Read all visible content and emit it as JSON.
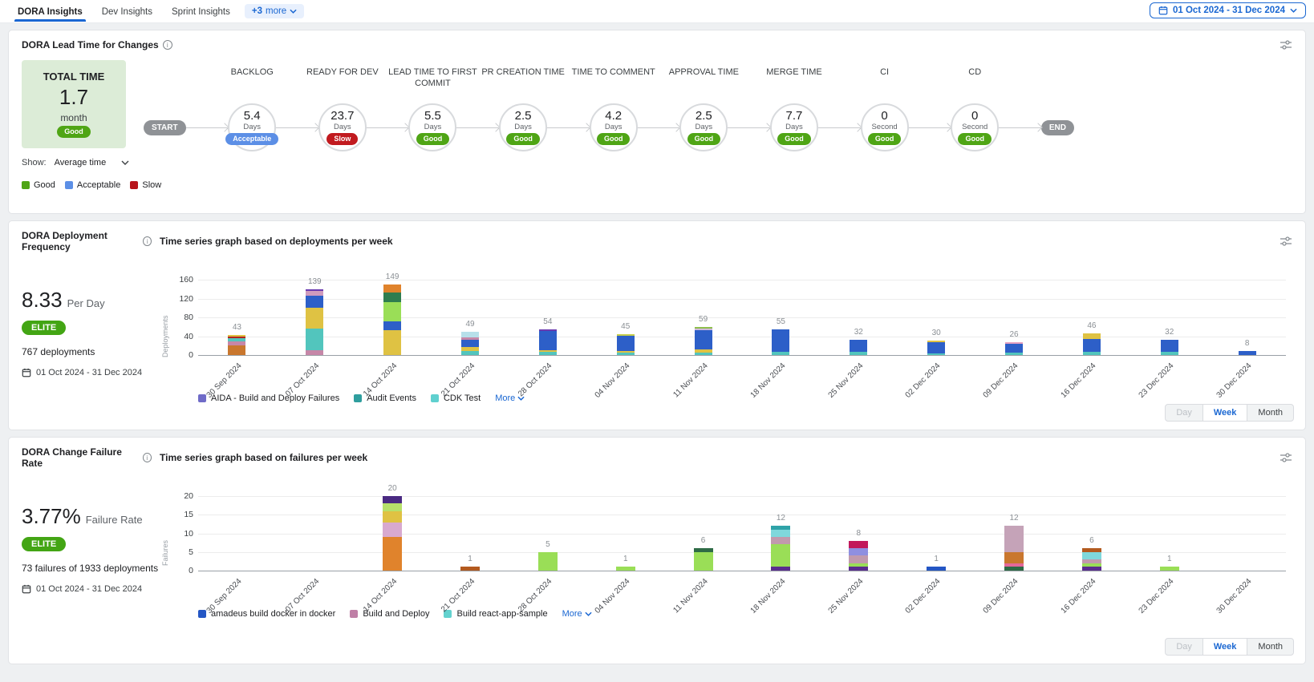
{
  "tabs": [
    {
      "label": "DORA Insights",
      "active": true
    },
    {
      "label": "Dev Insights",
      "active": false
    },
    {
      "label": "Sprint Insights",
      "active": false
    }
  ],
  "more_chip": {
    "plus": "+3",
    "label": "more"
  },
  "date_picker": {
    "value": "01 Oct 2024 - 31 Dec 2024"
  },
  "colors": {
    "accent_blue": "#1a67d2",
    "status": {
      "Good": "#4fa515",
      "Acceptable": "#5c8fe6",
      "Slow": "#c11a1f"
    },
    "elite": "#43a514"
  },
  "lead_time": {
    "title": "DORA Lead Time for Changes",
    "total": {
      "label": "TOTAL TIME",
      "value": "1.7",
      "unit": "month",
      "status": "Good"
    },
    "show_label": "Show:",
    "show_value": "Average time",
    "legend": [
      {
        "label": "Good",
        "color": "#4fa515"
      },
      {
        "label": "Acceptable",
        "color": "#5c8fe6"
      },
      {
        "label": "Slow",
        "color": "#b7131b"
      }
    ],
    "start_label": "START",
    "end_label": "END",
    "stages": [
      {
        "name": "BACKLOG",
        "value": "5.4",
        "unit": "Days",
        "status": "Acceptable"
      },
      {
        "name": "READY FOR DEV",
        "value": "23.7",
        "unit": "Days",
        "status": "Slow"
      },
      {
        "name": "LEAD TIME TO FIRST COMMIT",
        "value": "5.5",
        "unit": "Days",
        "status": "Good"
      },
      {
        "name": "PR CREATION TIME",
        "value": "2.5",
        "unit": "Days",
        "status": "Good"
      },
      {
        "name": "TIME TO COMMENT",
        "value": "4.2",
        "unit": "Days",
        "status": "Good"
      },
      {
        "name": "APPROVAL TIME",
        "value": "2.5",
        "unit": "Days",
        "status": "Good"
      },
      {
        "name": "MERGE TIME",
        "value": "7.7",
        "unit": "Days",
        "status": "Good"
      },
      {
        "name": "CI",
        "value": "0",
        "unit": "Second",
        "status": "Good"
      },
      {
        "name": "CD",
        "value": "0",
        "unit": "Second",
        "status": "Good"
      }
    ]
  },
  "deployment": {
    "title": "DORA Deployment Frequency",
    "chart_title": "Time series graph based on deployments per week",
    "rate": "8.33",
    "rate_unit": "Per Day",
    "badge": "ELITE",
    "total_label": "767 deployments",
    "date_range": "01 Oct 2024 - 31 Dec 2024",
    "legend": [
      {
        "label": "AIDA - Build and Deploy Failures",
        "color": "#6f6bc8"
      },
      {
        "label": "Audit Events",
        "color": "#2f9e9e"
      },
      {
        "label": "CDK Test",
        "color": "#5fd0cf"
      }
    ],
    "more_label": "More",
    "toggle": [
      "Day",
      "Week",
      "Month"
    ],
    "toggle_selected": "Week",
    "toggle_disabled": "Day"
  },
  "failure": {
    "title": "DORA Change Failure Rate",
    "chart_title": "Time series graph based on failures per week",
    "rate": "3.77%",
    "rate_unit": "Failure Rate",
    "badge": "ELITE",
    "total_label": "73 failures of 1933 deployments",
    "date_range": "01 Oct 2024 - 31 Dec 2024",
    "legend": [
      {
        "label": "amadeus build docker in docker",
        "color": "#2456c4"
      },
      {
        "label": "Build and Deploy",
        "color": "#bf7fa6"
      },
      {
        "label": "Build react-app-sample",
        "color": "#63d2cf"
      }
    ],
    "more_label": "More",
    "toggle": [
      "Day",
      "Week",
      "Month"
    ],
    "toggle_selected": "Week",
    "toggle_disabled": "Day"
  },
  "chart_data": [
    {
      "type": "bar",
      "stacked": true,
      "title": "Time series graph based on deployments per week",
      "ylabel": "Deployments",
      "ylim": [
        0,
        160
      ],
      "yticks": [
        0,
        40,
        80,
        120,
        160
      ],
      "grid": true,
      "legend_position": "bottom",
      "categories": [
        "30 Sep 2024",
        "07 Oct 2024",
        "14 Oct 2024",
        "21 Oct 2024",
        "28 Oct 2024",
        "04 Nov 2024",
        "11 Nov 2024",
        "18 Nov 2024",
        "25 Nov 2024",
        "02 Dec 2024",
        "09 Dec 2024",
        "16 Dec 2024",
        "23 Dec 2024",
        "30 Dec 2024"
      ],
      "totals": [
        43,
        139,
        149,
        49,
        54,
        45,
        59,
        55,
        32,
        30,
        26,
        46,
        32,
        8
      ],
      "bars": [
        [
          {
            "c": "#c9772e",
            "v": 20
          },
          {
            "c": "#c687a8",
            "v": 9
          },
          {
            "c": "#52c5bd",
            "v": 6
          },
          {
            "c": "#b3261e",
            "v": 4
          },
          {
            "c": "#dfc243",
            "v": 4
          }
        ],
        [
          {
            "c": "#c687a8",
            "v": 10
          },
          {
            "c": "#52c5bd",
            "v": 47
          },
          {
            "c": "#dfc243",
            "v": 43
          },
          {
            "c": "#2d5fc8",
            "v": 26
          },
          {
            "c": "#cf9bbd",
            "v": 10
          },
          {
            "c": "#6a3ab0",
            "v": 3
          }
        ],
        [
          {
            "c": "#dfc243",
            "v": 52
          },
          {
            "c": "#2d5fc8",
            "v": 19
          },
          {
            "c": "#9ade57",
            "v": 41
          },
          {
            "c": "#2e7d4f",
            "v": 20
          },
          {
            "c": "#e0832c",
            "v": 17
          }
        ],
        [
          {
            "c": "#52c5bd",
            "v": 8
          },
          {
            "c": "#dfc243",
            "v": 9
          },
          {
            "c": "#2d5fc8",
            "v": 16
          },
          {
            "c": "#c687a8",
            "v": 5
          },
          {
            "c": "#b7e0ea",
            "v": 11
          }
        ],
        [
          {
            "c": "#52c5bd",
            "v": 6
          },
          {
            "c": "#dfc243",
            "v": 5
          },
          {
            "c": "#2d5fc8",
            "v": 40
          },
          {
            "c": "#6a3ab0",
            "v": 3
          }
        ],
        [
          {
            "c": "#52c5bd",
            "v": 5
          },
          {
            "c": "#dfc243",
            "v": 4
          },
          {
            "c": "#2d5fc8",
            "v": 32
          },
          {
            "c": "#c6cf4a",
            "v": 4
          }
        ],
        [
          {
            "c": "#52c5bd",
            "v": 5
          },
          {
            "c": "#dfc243",
            "v": 7
          },
          {
            "c": "#2d5fc8",
            "v": 40
          },
          {
            "c": "#cdb6dd",
            "v": 4
          },
          {
            "c": "#8fbf4d",
            "v": 3
          }
        ],
        [
          {
            "c": "#52c5bd",
            "v": 7
          },
          {
            "c": "#2d5fc8",
            "v": 48
          }
        ],
        [
          {
            "c": "#52c5bd",
            "v": 7
          },
          {
            "c": "#2d5fc8",
            "v": 25
          }
        ],
        [
          {
            "c": "#52c5bd",
            "v": 4
          },
          {
            "c": "#2d5fc8",
            "v": 23
          },
          {
            "c": "#dfc243",
            "v": 3
          }
        ],
        [
          {
            "c": "#52c5bd",
            "v": 5
          },
          {
            "c": "#2d5fc8",
            "v": 19
          },
          {
            "c": "#e4a0c0",
            "v": 2
          }
        ],
        [
          {
            "c": "#52c5bd",
            "v": 6
          },
          {
            "c": "#2d5fc8",
            "v": 28
          },
          {
            "c": "#dfc243",
            "v": 12
          }
        ],
        [
          {
            "c": "#52c5bd",
            "v": 6
          },
          {
            "c": "#2d5fc8",
            "v": 26
          }
        ],
        [
          {
            "c": "#2d5fc8",
            "v": 8
          }
        ]
      ]
    },
    {
      "type": "bar",
      "stacked": true,
      "title": "Time series graph based on failures per week",
      "ylabel": "Failures",
      "ylim": [
        0,
        20
      ],
      "yticks": [
        0,
        5,
        10,
        15,
        20
      ],
      "grid": true,
      "legend_position": "bottom",
      "categories": [
        "30 Sep 2024",
        "07 Oct 2024",
        "14 Oct 2024",
        "21 Oct 2024",
        "28 Oct 2024",
        "04 Nov 2024",
        "11 Nov 2024",
        "18 Nov 2024",
        "25 Nov 2024",
        "02 Dec 2024",
        "09 Dec 2024",
        "16 Dec 2024",
        "23 Dec 2024",
        "30 Dec 2024"
      ],
      "totals": [
        0,
        0,
        20,
        1,
        5,
        1,
        6,
        12,
        8,
        1,
        12,
        6,
        1,
        0
      ],
      "bars": [
        [],
        [],
        [
          {
            "c": "#e0832c",
            "v": 9
          },
          {
            "c": "#d8a9cf",
            "v": 4
          },
          {
            "c": "#dfc243",
            "v": 3
          },
          {
            "c": "#b6e06a",
            "v": 2
          },
          {
            "c": "#4a2a82",
            "v": 2
          }
        ],
        [
          {
            "c": "#b35a1f",
            "v": 1
          }
        ],
        [
          {
            "c": "#9ade57",
            "v": 5
          }
        ],
        [
          {
            "c": "#9ade57",
            "v": 1
          }
        ],
        [
          {
            "c": "#9ade57",
            "v": 5
          },
          {
            "c": "#2e6b46",
            "v": 1
          }
        ],
        [
          {
            "c": "#5a2d8e",
            "v": 1
          },
          {
            "c": "#9ade57",
            "v": 6
          },
          {
            "c": "#c19aad",
            "v": 2
          },
          {
            "c": "#7fd8dc",
            "v": 2
          },
          {
            "c": "#2fa3a8",
            "v": 1
          }
        ],
        [
          {
            "c": "#5a2d8e",
            "v": 1
          },
          {
            "c": "#9ade57",
            "v": 1
          },
          {
            "c": "#c19aad",
            "v": 2
          },
          {
            "c": "#8f8fe0",
            "v": 2
          },
          {
            "c": "#c2185b",
            "v": 2
          }
        ],
        [
          {
            "c": "#2456c4",
            "v": 1
          }
        ],
        [
          {
            "c": "#2e6b46",
            "v": 1
          },
          {
            "c": "#e4689a",
            "v": 1
          },
          {
            "c": "#c9772e",
            "v": 3
          },
          {
            "c": "#c5a3b8",
            "v": 7
          }
        ],
        [
          {
            "c": "#5a2d8e",
            "v": 1
          },
          {
            "c": "#9ade57",
            "v": 1
          },
          {
            "c": "#c19aad",
            "v": 1
          },
          {
            "c": "#7fd8dc",
            "v": 2
          },
          {
            "c": "#b35a1f",
            "v": 1
          }
        ],
        [
          {
            "c": "#9ade57",
            "v": 1
          }
        ],
        []
      ]
    }
  ]
}
